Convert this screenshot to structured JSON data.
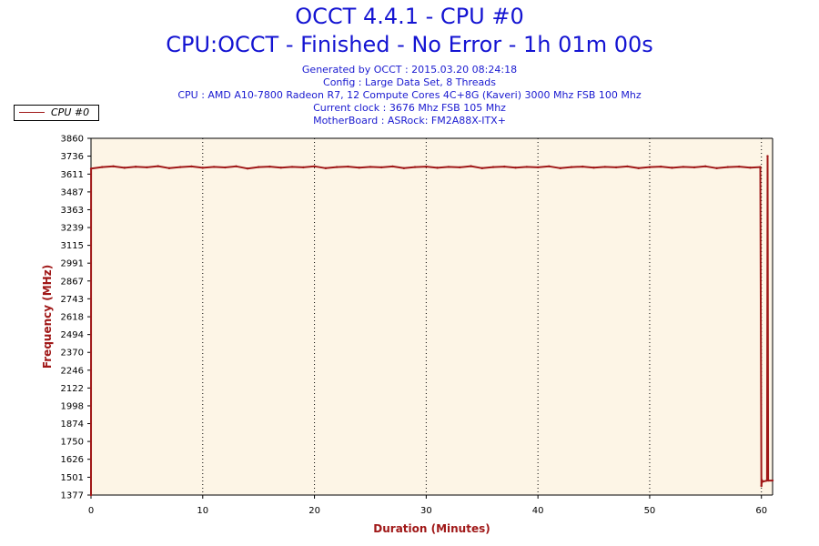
{
  "title": "OCCT 4.4.1 - CPU #0",
  "subtitle": "CPU:OCCT - Finished - No Error - 1h 01m 00s",
  "info_lines": [
    "Generated by OCCT : 2015.03.20 08:24:18",
    "Config : Large Data Set, 8 Threads",
    "CPU : AMD A10-7800 Radeon R7, 12 Compute Cores 4C+8G (Kaveri) 3000 Mhz FSB 100 Mhz",
    "Current clock : 3676 Mhz FSB 105 Mhz",
    "MotherBoard : ASRock: FM2A88X-ITX+"
  ],
  "colors": {
    "series": "#a01818",
    "plot_bg": "#fdf5e6",
    "title": "#1414d2",
    "axis_label": "#a01818"
  },
  "chart_data": {
    "type": "line",
    "title": "OCCT 4.4.1 - CPU #0",
    "xlabel": "Duration (Minutes)",
    "ylabel": "Frequency (MHz)",
    "xlim": [
      0,
      61
    ],
    "ylim": [
      1377,
      3860
    ],
    "x_ticks": [
      0,
      10,
      20,
      30,
      40,
      50,
      60
    ],
    "y_ticks": [
      1377,
      1501,
      1626,
      1750,
      1874,
      1998,
      2122,
      2246,
      2370,
      2494,
      2618,
      2743,
      2867,
      2991,
      3115,
      3239,
      3363,
      3487,
      3611,
      3736,
      3860
    ],
    "grid": "vertical dotted",
    "legend": "top-left",
    "series": [
      {
        "name": "CPU #0",
        "x": [
          0,
          0.01,
          1,
          2,
          3,
          4,
          5,
          6,
          7,
          8,
          9,
          10,
          11,
          12,
          13,
          14,
          15,
          16,
          17,
          18,
          19,
          20,
          21,
          22,
          23,
          24,
          25,
          26,
          27,
          28,
          29,
          30,
          31,
          32,
          33,
          34,
          35,
          36,
          37,
          38,
          39,
          40,
          41,
          42,
          43,
          44,
          45,
          46,
          47,
          48,
          49,
          50,
          51,
          52,
          53,
          54,
          55,
          56,
          57,
          58,
          59,
          59.9,
          60.0,
          60.05,
          60.1,
          60.5,
          60.55,
          60.6,
          61
        ],
        "y": [
          1377,
          3650,
          3660,
          3665,
          3655,
          3662,
          3658,
          3666,
          3652,
          3660,
          3664,
          3655,
          3661,
          3657,
          3665,
          3650,
          3660,
          3663,
          3656,
          3661,
          3658,
          3665,
          3652,
          3660,
          3663,
          3656,
          3661,
          3658,
          3664,
          3652,
          3660,
          3663,
          3655,
          3661,
          3658,
          3666,
          3652,
          3660,
          3663,
          3656,
          3661,
          3658,
          3665,
          3652,
          3660,
          3663,
          3656,
          3661,
          3658,
          3664,
          3652,
          3660,
          3663,
          3655,
          3661,
          3658,
          3665,
          3652,
          3660,
          3663,
          3656,
          3660,
          1440,
          1480,
          1470,
          1478,
          3736,
          1478,
          1478
        ]
      }
    ]
  }
}
